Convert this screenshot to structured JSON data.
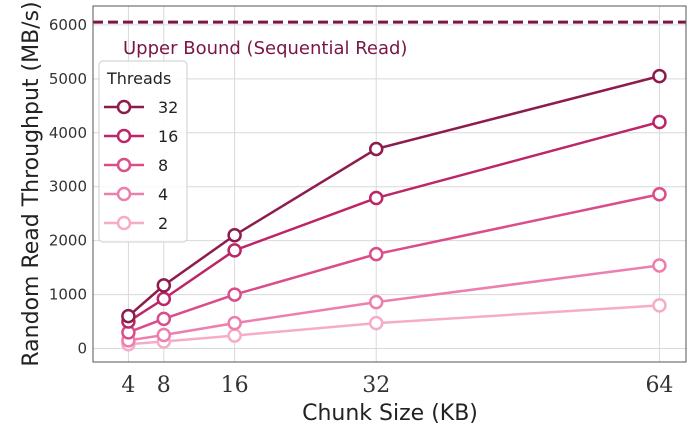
{
  "chart_data": {
    "type": "line",
    "xlabel": "Chunk Size (KB)",
    "ylabel": "Random Read Throughput (MB/s)",
    "x": [
      4,
      8,
      16,
      32,
      64
    ],
    "x_ticks": [
      "4",
      "8",
      "16",
      "32",
      "64"
    ],
    "y_ticks": [
      "0",
      "1000",
      "2000",
      "3000",
      "4000",
      "5000",
      "6000"
    ],
    "xlim": [
      0,
      67
    ],
    "ylim": [
      -250,
      6350
    ],
    "grid": true,
    "legend": {
      "title": "Threads",
      "placement": "top-left"
    },
    "series": [
      {
        "name": "32",
        "color": "#8e1b4e",
        "values": [
          600,
          1170,
          2100,
          3700,
          5050
        ]
      },
      {
        "name": "16",
        "color": "#bc2567",
        "values": [
          500,
          920,
          1820,
          2790,
          4200
        ]
      },
      {
        "name": "8",
        "color": "#db4d8a",
        "values": [
          300,
          550,
          1000,
          1750,
          2860
        ]
      },
      {
        "name": "4",
        "color": "#ec7fad",
        "values": [
          150,
          250,
          470,
          860,
          1540
        ]
      },
      {
        "name": "2",
        "color": "#f6acc9",
        "values": [
          80,
          130,
          240,
          470,
          800
        ]
      }
    ],
    "upper_bound": {
      "label": "Upper Bound (Sequential Read)",
      "value": 6050,
      "color": "#7a1545"
    }
  }
}
